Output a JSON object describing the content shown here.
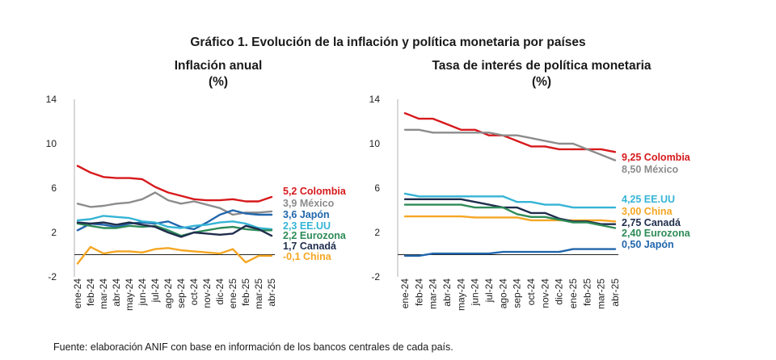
{
  "title": "Gráfico 1. Evolución de la inflación y política monetaria por países",
  "source": "Fuente: elaboración ANIF con base en información de los bancos centrales de cada país.",
  "chart_data": [
    {
      "type": "line",
      "title": "Inflación anual",
      "subtitle": "(%)",
      "ylim": [
        -2,
        14
      ],
      "yticks": [
        14,
        10,
        6,
        2,
        -2
      ],
      "categories": [
        "ene-24",
        "feb-24",
        "mar-24",
        "abr-24",
        "may-24",
        "jun-24",
        "jul-24",
        "ago-24",
        "sep-24",
        "oct-24",
        "nov-24",
        "dic-24",
        "ene-25",
        "feb-25",
        "mar-25",
        "abr-25"
      ],
      "series": [
        {
          "name": "Colombia",
          "label": "5,2 Colombia",
          "color": "#d7191c",
          "values": [
            8.0,
            7.4,
            7.0,
            6.9,
            6.9,
            6.8,
            6.1,
            5.6,
            5.3,
            5.0,
            4.9,
            4.9,
            5.0,
            4.8,
            4.8,
            5.2
          ]
        },
        {
          "name": "México",
          "label": "3,9 México",
          "color": "#8c8c8c",
          "values": [
            4.6,
            4.3,
            4.4,
            4.6,
            4.7,
            5.0,
            5.6,
            4.9,
            4.6,
            4.8,
            4.5,
            4.2,
            3.6,
            3.8,
            3.8,
            3.9
          ]
        },
        {
          "name": "Japón",
          "label": "3,6 Japón",
          "color": "#2166ac",
          "values": [
            2.2,
            2.8,
            2.7,
            2.5,
            2.8,
            2.9,
            2.8,
            3.0,
            2.5,
            2.3,
            2.9,
            3.6,
            4.0,
            3.7,
            3.6,
            3.6
          ]
        },
        {
          "name": "EE.UU",
          "label": "2,3 EE.UU",
          "color": "#35b4d6",
          "values": [
            3.1,
            3.2,
            3.5,
            3.4,
            3.3,
            3.0,
            2.9,
            2.5,
            2.4,
            2.6,
            2.7,
            2.9,
            3.0,
            2.8,
            2.4,
            2.3
          ]
        },
        {
          "name": "Eurozona",
          "label": "2,2 Eurozona",
          "color": "#2e8b57",
          "values": [
            2.8,
            2.6,
            2.4,
            2.4,
            2.6,
            2.5,
            2.6,
            2.2,
            1.7,
            2.0,
            2.2,
            2.4,
            2.5,
            2.3,
            2.2,
            2.2
          ]
        },
        {
          "name": "Canadá",
          "label": "1,7 Canadá",
          "color": "#1f2d4d",
          "values": [
            2.9,
            2.8,
            2.9,
            2.7,
            2.9,
            2.7,
            2.5,
            2.0,
            1.6,
            2.0,
            1.9,
            1.8,
            1.9,
            2.6,
            2.3,
            1.7
          ]
        },
        {
          "name": "China",
          "label": "-0,1 China",
          "color": "#f5a623",
          "values": [
            -0.8,
            0.7,
            0.1,
            0.3,
            0.3,
            0.2,
            0.5,
            0.6,
            0.4,
            0.3,
            0.2,
            0.1,
            0.5,
            -0.7,
            -0.1,
            -0.1
          ]
        }
      ]
    },
    {
      "type": "line",
      "title": "Tasa de interés de política monetaria",
      "subtitle": "(%)",
      "ylim": [
        -2,
        14
      ],
      "yticks": [
        14,
        10,
        6,
        2,
        -2
      ],
      "categories": [
        "ene-24",
        "feb-24",
        "mar-24",
        "abr-24",
        "may-24",
        "jun-24",
        "jul-24",
        "ago-24",
        "sep-24",
        "oct-24",
        "nov-24",
        "dic-24",
        "ene-25",
        "feb-25",
        "mar-25",
        "abr-25"
      ],
      "series": [
        {
          "name": "Colombia",
          "label": "9,25 Colombia",
          "color": "#d7191c",
          "values": [
            12.75,
            12.25,
            12.25,
            11.75,
            11.25,
            11.25,
            10.75,
            10.75,
            10.25,
            9.75,
            9.75,
            9.5,
            9.5,
            9.5,
            9.5,
            9.25
          ]
        },
        {
          "name": "México",
          "label": "8,50 México",
          "color": "#8c8c8c",
          "values": [
            11.25,
            11.25,
            11.0,
            11.0,
            11.0,
            11.0,
            11.0,
            10.75,
            10.75,
            10.5,
            10.25,
            10.0,
            10.0,
            9.5,
            9.0,
            8.5
          ]
        },
        {
          "name": "EE.UU",
          "label": "4,25 EE.UU",
          "color": "#35b4d6",
          "values": [
            5.5,
            5.25,
            5.25,
            5.25,
            5.25,
            5.25,
            5.25,
            5.25,
            4.75,
            4.75,
            4.5,
            4.5,
            4.25,
            4.25,
            4.25,
            4.25
          ]
        },
        {
          "name": "China",
          "label": "3,00 China",
          "color": "#f5a623",
          "values": [
            3.45,
            3.45,
            3.45,
            3.45,
            3.45,
            3.35,
            3.35,
            3.35,
            3.35,
            3.1,
            3.1,
            3.1,
            3.1,
            3.1,
            3.1,
            3.0
          ]
        },
        {
          "name": "Canadá",
          "label": "2,75 Canadá",
          "color": "#1f2d4d",
          "values": [
            5.0,
            5.0,
            5.0,
            5.0,
            5.0,
            4.75,
            4.5,
            4.25,
            4.25,
            3.75,
            3.75,
            3.25,
            3.0,
            3.0,
            2.75,
            2.75
          ]
        },
        {
          "name": "Eurozona",
          "label": "2,40 Eurozona",
          "color": "#2e8b57",
          "values": [
            4.5,
            4.5,
            4.5,
            4.5,
            4.5,
            4.25,
            4.25,
            4.25,
            3.65,
            3.4,
            3.4,
            3.15,
            2.9,
            2.9,
            2.65,
            2.4
          ]
        },
        {
          "name": "Japón",
          "label": "0,50 Japón",
          "color": "#2166ac",
          "values": [
            -0.1,
            -0.1,
            0.1,
            0.1,
            0.1,
            0.1,
            0.1,
            0.25,
            0.25,
            0.25,
            0.25,
            0.25,
            0.5,
            0.5,
            0.5,
            0.5
          ]
        }
      ]
    }
  ]
}
